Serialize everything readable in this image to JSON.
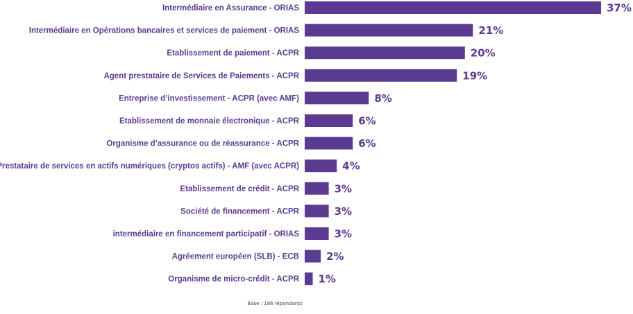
{
  "colors": {
    "bar": "#5b3a91",
    "label_text": "#5b3a91",
    "value_text": "#5b3a91",
    "footnote_text": "#3a3a6a"
  },
  "chart_data": {
    "type": "bar",
    "orientation": "horizontal",
    "categories": [
      "Intermédiaire en Assurance - ORIAS",
      "Intermédiaire en Opérations bancaires et services de paiement - ORIAS",
      "Etablissement de paiement - ACPR",
      "Agent prestataire de Services de Paiements - ACPR",
      "Entreprise d’investissement - ACPR (avec AMF)",
      "Etablissement de monnaie électronique - ACPR",
      "Organisme d’assurance ou de réassurance - ACPR",
      "Prestataire de services en actifs numériques (cryptos actifs) - AMF (avec ACPR)",
      "Etablissement de crédit - ACPR",
      "Société de financement - ACPR",
      "intermédiaire en financement participatif - ORIAS",
      "Agréement européen (SLB) - ECB",
      "Organisme de micro-crédit - ACPR"
    ],
    "values": [
      37,
      21,
      20,
      19,
      8,
      6,
      6,
      4,
      3,
      3,
      3,
      2,
      1
    ],
    "value_labels": [
      "37%",
      "21%",
      "20%",
      "19%",
      "8%",
      "6%",
      "6%",
      "4%",
      "3%",
      "3%",
      "3%",
      "2%",
      "1%"
    ],
    "unit": "%",
    "xlim": [
      0,
      37
    ],
    "grid": false,
    "legend": "none"
  },
  "footnote": "Base : 186 répondants"
}
